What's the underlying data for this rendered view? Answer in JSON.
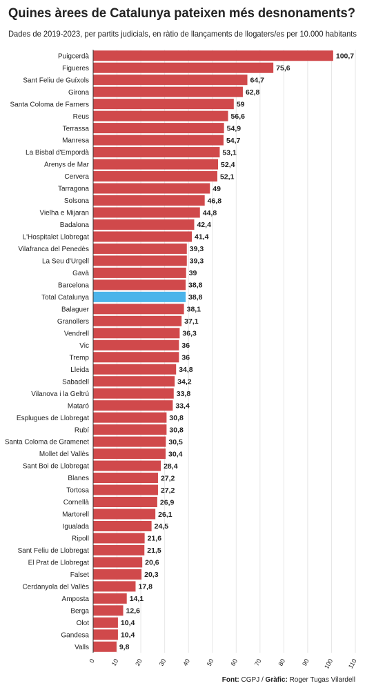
{
  "chart_data": {
    "type": "hbar",
    "title": "Quines àrees de Catalunya pateixen més desnonaments?",
    "subtitle": "Dades de 2019-2023, per partits judicials, en ràtio de llançaments de llogaters/es per 10.000 habitants",
    "categories": [
      "Puigcerdà",
      "Figueres",
      "Sant Feliu de Guíxols",
      "Girona",
      "Santa Coloma de Farners",
      "Reus",
      "Terrassa",
      "Manresa",
      "La Bisbal d'Empordà",
      "Arenys de Mar",
      "Cervera",
      "Tarragona",
      "Solsona",
      "Vielha e Mijaran",
      "Badalona",
      "L'Hospitalet Llobregat",
      "Vilafranca del Penedès",
      "La Seu d'Urgell",
      "Gavà",
      "Barcelona",
      "Total Catalunya",
      "Balaguer",
      "Granollers",
      "Vendrell",
      "Vic",
      "Tremp",
      "Lleida",
      "Sabadell",
      "Vilanova i la Geltrú",
      "Mataró",
      "Esplugues de Llobregat",
      "Rubí",
      "Santa Coloma de Gramenet",
      "Mollet del Vallès",
      "Sant Boi de Llobregat",
      "Blanes",
      "Tortosa",
      "Cornellà",
      "Martorell",
      "Igualada",
      "Ripoll",
      "Sant Feliu de Llobregat",
      "El Prat de Llobregat",
      "Falset",
      "Cerdanyola del Vallès",
      "Amposta",
      "Berga",
      "Olot",
      "Gandesa",
      "Valls"
    ],
    "values": [
      100.7,
      75.6,
      64.7,
      62.8,
      59,
      56.6,
      54.9,
      54.7,
      53.1,
      52.4,
      52.1,
      49,
      46.8,
      44.8,
      42.4,
      41.4,
      39.3,
      39.3,
      39,
      38.8,
      38.8,
      38.1,
      37.1,
      36.3,
      36,
      36,
      34.8,
      34.2,
      33.8,
      33.4,
      30.8,
      30.8,
      30.5,
      30.4,
      28.4,
      27.2,
      27.2,
      26.9,
      26.1,
      24.5,
      21.6,
      21.5,
      20.6,
      20.3,
      17.8,
      14.1,
      12.6,
      10.4,
      10.4,
      9.8
    ],
    "value_labels": [
      "100,7",
      "75,6",
      "64,7",
      "62,8",
      "59",
      "56,6",
      "54,9",
      "54,7",
      "53,1",
      "52,4",
      "52,1",
      "49",
      "46,8",
      "44,8",
      "42,4",
      "41,4",
      "39,3",
      "39,3",
      "39",
      "38,8",
      "38,8",
      "38,1",
      "37,1",
      "36,3",
      "36",
      "36",
      "34,8",
      "34,2",
      "33,8",
      "33,4",
      "30,8",
      "30,8",
      "30,5",
      "30,4",
      "28,4",
      "27,2",
      "27,2",
      "26,9",
      "26,1",
      "24,5",
      "21,6",
      "21,5",
      "20,6",
      "20,3",
      "17,8",
      "14,1",
      "12,6",
      "10,4",
      "10,4",
      "9,8"
    ],
    "colors": [
      "#d0494b",
      "#d0494b",
      "#d0494b",
      "#d0494b",
      "#d0494b",
      "#d0494b",
      "#d0494b",
      "#d0494b",
      "#d0494b",
      "#d0494b",
      "#d0494b",
      "#d0494b",
      "#d0494b",
      "#d0494b",
      "#d0494b",
      "#d0494b",
      "#d0494b",
      "#d0494b",
      "#d0494b",
      "#d0494b",
      "#4bb4ea",
      "#d0494b",
      "#d0494b",
      "#d0494b",
      "#d0494b",
      "#d0494b",
      "#d0494b",
      "#d0494b",
      "#d0494b",
      "#d0494b",
      "#d0494b",
      "#d0494b",
      "#d0494b",
      "#d0494b",
      "#d0494b",
      "#d0494b",
      "#d0494b",
      "#d0494b",
      "#d0494b",
      "#d0494b",
      "#d0494b",
      "#d0494b",
      "#d0494b",
      "#d0494b",
      "#d0494b",
      "#d0494b",
      "#d0494b",
      "#d0494b",
      "#d0494b",
      "#d0494b"
    ],
    "xlim": [
      0,
      110
    ],
    "xticks": [
      0,
      10,
      20,
      30,
      40,
      50,
      60,
      70,
      80,
      90,
      100,
      110
    ],
    "grid": true,
    "footer": [
      "Font:",
      "CGPJ /",
      "Gràfic:",
      "Roger Tugas Vilardell"
    ]
  }
}
